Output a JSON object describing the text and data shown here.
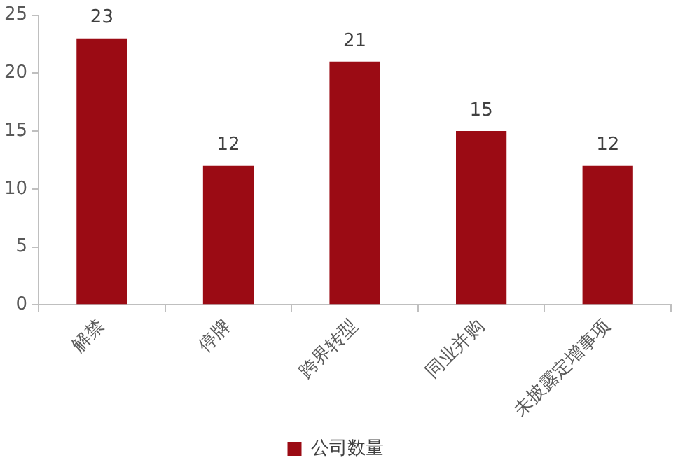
{
  "chart_data": {
    "type": "bar",
    "categories": [
      "解禁",
      "停牌",
      "跨界转型",
      "同业并购",
      "未披露定增事项"
    ],
    "series": [
      {
        "name": "公司数量",
        "color": "#9b0b14",
        "values": [
          23,
          12,
          21,
          15,
          12
        ]
      }
    ],
    "ylim": [
      0,
      25
    ],
    "yticks": [
      0,
      5,
      10,
      15,
      20,
      25
    ],
    "grid": false,
    "legend": "bottom",
    "data_labels": true
  }
}
